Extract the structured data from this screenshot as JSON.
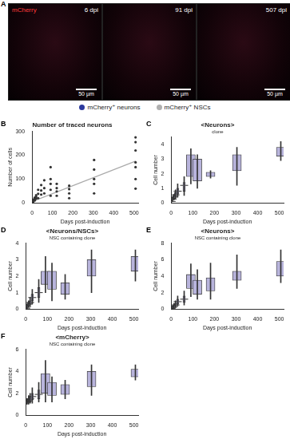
{
  "panel_a": {
    "panel": "A",
    "channel": "mCherry",
    "images": [
      "6 dpi",
      "91 dpi",
      "507 dpi"
    ],
    "scale_bar": "50 µm",
    "legend": [
      {
        "name": "mCherry⁺ neurons",
        "color": "#2d3a9e"
      },
      {
        "name": "mCherry⁺ NSCs",
        "color": "#b0b0b0"
      }
    ]
  },
  "chart_data": [
    {
      "panel": "B",
      "type": "scatter",
      "title": "Number of traced neurons",
      "x_label": "Days post-induction",
      "y_label": "Number of cells",
      "xlim": [
        0,
        520
      ],
      "xticks": [
        0,
        100,
        200,
        300,
        400,
        500
      ],
      "ylim": [
        0,
        300
      ],
      "yticks": [
        0,
        100,
        200,
        300
      ],
      "grid": false,
      "series": [
        {
          "type": "scatter",
          "marker": "circle",
          "color": "#333333",
          "x": [
            6,
            6,
            6,
            6,
            13,
            13,
            13,
            20,
            20,
            20,
            30,
            30,
            30,
            45,
            45,
            45,
            60,
            60,
            60,
            91,
            91,
            91,
            91,
            91,
            121,
            121,
            121,
            121,
            182,
            182,
            182,
            182,
            304,
            304,
            304,
            304,
            304,
            507,
            507,
            507,
            507,
            507,
            507,
            507
          ],
          "values": [
            5,
            8,
            10,
            14,
            10,
            15,
            22,
            18,
            25,
            32,
            20,
            38,
            55,
            35,
            52,
            75,
            40,
            62,
            95,
            30,
            55,
            80,
            100,
            150,
            30,
            48,
            62,
            80,
            20,
            40,
            58,
            72,
            40,
            80,
            100,
            140,
            180,
            60,
            100,
            150,
            170,
            220,
            255,
            275
          ]
        },
        {
          "type": "line",
          "line_style": "solid",
          "color": "#aaaaaa",
          "x": [
            0,
            507
          ],
          "values": [
            5,
            175
          ]
        }
      ]
    },
    {
      "panel": "C",
      "type": "box",
      "title": "<Neurons>",
      "subtitle": "clone",
      "x_label": "Days post-induction",
      "y_label": "Cell number",
      "xlim": [
        0,
        520
      ],
      "xticks": [
        0,
        100,
        200,
        300,
        400,
        500
      ],
      "ylim": [
        0,
        4.5
      ],
      "yticks": [
        0,
        1,
        2,
        3,
        4
      ],
      "grid": false,
      "color": "#b8b4dc",
      "x": [
        2,
        6,
        13,
        20,
        30,
        60,
        91,
        121,
        182,
        304,
        507
      ],
      "min": [
        0.05,
        0.1,
        0.2,
        0.3,
        0.4,
        0.5,
        1.3,
        1.0,
        1.7,
        1.2,
        2.9
      ],
      "q1": [
        0.08,
        0.2,
        0.3,
        0.45,
        0.6,
        0.8,
        1.8,
        1.5,
        1.8,
        2.2,
        3.2
      ],
      "values": [
        0.1,
        0.25,
        0.4,
        0.55,
        0.8,
        1.2,
        2.5,
        2.5,
        2.0,
        2.8,
        3.4
      ],
      "q3": [
        0.12,
        0.3,
        0.5,
        0.7,
        1.0,
        1.4,
        3.3,
        3.0,
        2.1,
        3.3,
        3.8
      ],
      "max": [
        0.15,
        0.4,
        0.6,
        0.9,
        1.3,
        1.8,
        3.7,
        3.3,
        2.2,
        3.8,
        4.2
      ]
    },
    {
      "panel": "D",
      "type": "box",
      "title": "<Neurons/NSCs>",
      "subtitle": "NSC containing clone",
      "x_label": "Days post-induction",
      "y_label": "Cell number",
      "xlim": [
        0,
        520
      ],
      "xticks": [
        0,
        100,
        200,
        300,
        400,
        500
      ],
      "ylim": [
        0,
        4
      ],
      "yticks": [
        0,
        1,
        2,
        3,
        4
      ],
      "grid": false,
      "color": "#b8b4dc",
      "x": [
        2,
        6,
        13,
        20,
        30,
        60,
        91,
        121,
        182,
        304,
        507
      ],
      "min": [
        0,
        0.05,
        0.1,
        0.2,
        0.3,
        0.4,
        1.0,
        0.5,
        0.6,
        1.0,
        1.7
      ],
      "q1": [
        0.02,
        0.1,
        0.2,
        0.3,
        0.5,
        0.7,
        1.5,
        1.2,
        0.9,
        2.0,
        2.3
      ],
      "values": [
        0.05,
        0.15,
        0.3,
        0.4,
        0.7,
        1.0,
        2.0,
        1.7,
        1.2,
        2.5,
        2.7
      ],
      "q3": [
        0.08,
        0.2,
        0.4,
        0.5,
        0.9,
        1.3,
        2.3,
        2.3,
        1.6,
        3.0,
        3.2
      ],
      "max": [
        0.1,
        0.3,
        0.5,
        0.7,
        1.2,
        1.8,
        3.2,
        2.8,
        2.1,
        3.6,
        3.6
      ]
    },
    {
      "panel": "E",
      "type": "box",
      "title": "<Neurons>",
      "subtitle": "NSC containing clone",
      "x_label": "Days post-induction",
      "y_label": "Cell number",
      "xlim": [
        0,
        520
      ],
      "xticks": [
        0,
        100,
        200,
        300,
        400,
        500
      ],
      "ylim": [
        0,
        8
      ],
      "yticks": [
        0,
        2,
        4,
        6,
        8
      ],
      "grid": false,
      "color": "#b8b4dc",
      "x": [
        2,
        6,
        13,
        20,
        30,
        60,
        91,
        121,
        182,
        304,
        507
      ],
      "min": [
        0,
        0.05,
        0.1,
        0.2,
        0.4,
        0.5,
        1.5,
        1.2,
        1.2,
        2.5,
        3.2
      ],
      "q1": [
        0.02,
        0.1,
        0.2,
        0.4,
        0.6,
        0.8,
        2.5,
        1.8,
        2.2,
        3.5,
        4.0
      ],
      "values": [
        0.05,
        0.2,
        0.3,
        0.5,
        0.9,
        1.2,
        3.2,
        2.5,
        2.8,
        4.4,
        4.8
      ],
      "q3": [
        0.08,
        0.3,
        0.5,
        0.7,
        1.2,
        1.6,
        4.2,
        3.5,
        3.8,
        4.6,
        5.8
      ],
      "max": [
        0.1,
        0.4,
        0.7,
        1.0,
        1.6,
        2.2,
        5.5,
        4.8,
        5.6,
        6.6,
        7.2
      ]
    },
    {
      "panel": "F",
      "type": "box",
      "title": "<mCherry>",
      "subtitle": "NSC containing clone",
      "x_label": "Days post-induction",
      "y_label": "Cell number",
      "xlim": [
        0,
        520
      ],
      "xticks": [
        0,
        100,
        200,
        300,
        400,
        500
      ],
      "ylim": [
        0,
        6
      ],
      "yticks": [
        0,
        2,
        4,
        6
      ],
      "grid": false,
      "color": "#b8b4dc",
      "x": [
        2,
        6,
        13,
        20,
        30,
        60,
        91,
        121,
        182,
        304,
        507
      ],
      "min": [
        1.0,
        1.0,
        1.0,
        1.1,
        1.1,
        1.2,
        1.2,
        1.2,
        1.5,
        1.8,
        3.2
      ],
      "q1": [
        1.1,
        1.1,
        1.2,
        1.3,
        1.4,
        1.5,
        2.0,
        1.8,
        1.9,
        2.6,
        3.5
      ],
      "values": [
        1.2,
        1.2,
        1.3,
        1.5,
        1.7,
        1.9,
        3.0,
        2.3,
        2.3,
        3.3,
        3.9
      ],
      "q3": [
        1.3,
        1.3,
        1.5,
        1.7,
        2.0,
        2.3,
        3.8,
        3.0,
        2.8,
        4.0,
        4.2
      ],
      "max": [
        1.4,
        1.5,
        1.8,
        2.0,
        2.5,
        3.0,
        5.0,
        3.5,
        3.2,
        4.6,
        4.6
      ]
    }
  ]
}
